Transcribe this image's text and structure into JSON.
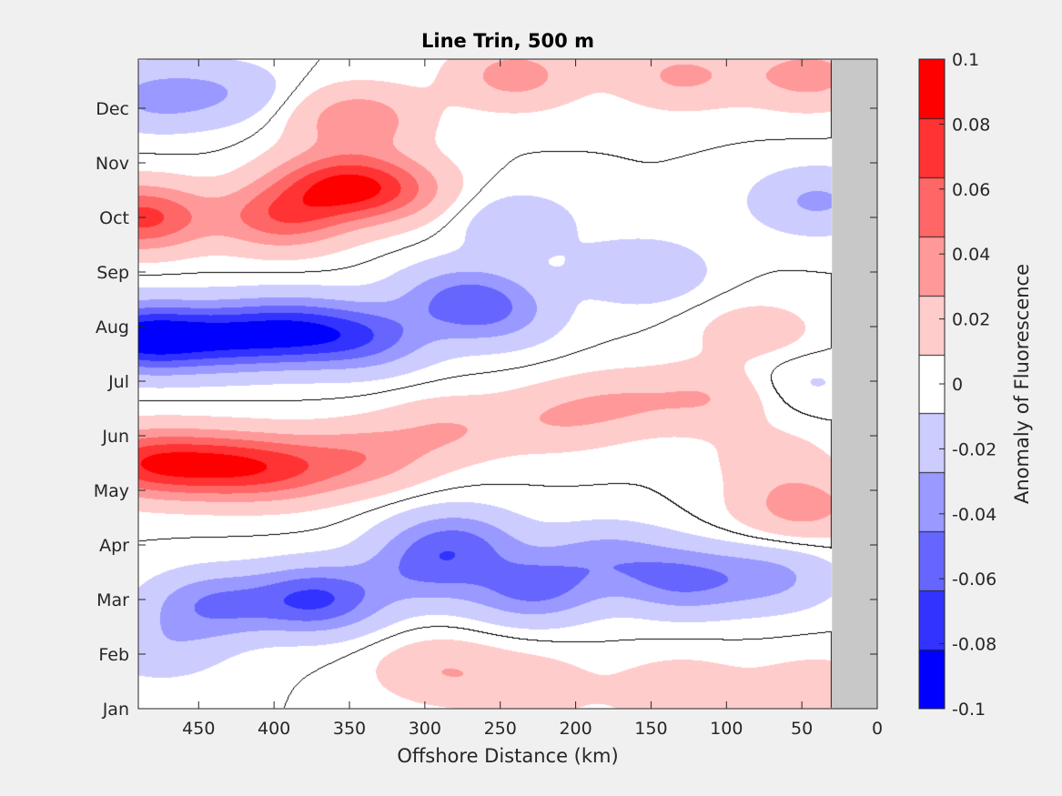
{
  "chart_data": {
    "type": "heatmap",
    "title": "Line Trin, 500 m",
    "xlabel": "Offshore Distance (km)",
    "ylabel": "",
    "colorbar_label": "Anomaly of Fluorescence",
    "x_direction": "reversed",
    "xlim": [
      490,
      0
    ],
    "ylim": [
      0,
      11.9
    ],
    "x_ticks": [
      450,
      400,
      350,
      300,
      250,
      200,
      150,
      100,
      50,
      0
    ],
    "x_tick_labels": [
      "450",
      "400",
      "350",
      "300",
      "250",
      "200",
      "150",
      "100",
      "50",
      "0"
    ],
    "y_ticks": [
      0,
      1,
      2,
      3,
      4,
      5,
      6,
      7,
      8,
      9,
      10,
      11
    ],
    "y_tick_labels": [
      "Jan",
      "Feb",
      "Mar",
      "Apr",
      "May",
      "Jun",
      "Jul",
      "Aug",
      "Sep",
      "Oct",
      "Nov",
      "Dec"
    ],
    "color_limits": [
      -0.1,
      0.1
    ],
    "colorbar_ticks": [
      0.1,
      0.08,
      0.06,
      0.04,
      0.02,
      0,
      -0.02,
      -0.04,
      -0.06,
      -0.08,
      -0.1
    ],
    "colorbar_tick_labels": [
      "0.1",
      "0.08",
      "0.06",
      "0.04",
      "0.02",
      "0",
      "-0.02",
      "-0.04",
      "-0.06",
      "-0.08",
      "-0.1"
    ],
    "contour_levels": 11,
    "zero_contour": true,
    "no_data_region_x": [
      30,
      0
    ],
    "no_data_color": "#c8c8c8",
    "colormap": "blue-white-red",
    "grid": false,
    "anomaly_features": [
      {
        "sign": "positive",
        "center": [
          488,
          9.0
        ],
        "peak": 0.07
      },
      {
        "sign": "positive",
        "center": [
          395,
          9.0
        ],
        "peak": 0.055
      },
      {
        "sign": "positive",
        "center": [
          360,
          9.6
        ],
        "peak": 0.06
      },
      {
        "sign": "positive",
        "center": [
          325,
          9.5
        ],
        "peak": 0.045
      },
      {
        "sign": "positive",
        "center": [
          345,
          10.8
        ],
        "peak": 0.04
      },
      {
        "sign": "positive",
        "center": [
          240,
          11.6
        ],
        "peak": 0.035
      },
      {
        "sign": "positive",
        "center": [
          130,
          11.6
        ],
        "peak": 0.03
      },
      {
        "sign": "positive",
        "center": [
          45,
          11.6
        ],
        "peak": 0.035
      },
      {
        "sign": "positive",
        "center": [
          488,
          4.5
        ],
        "peak": 0.065
      },
      {
        "sign": "positive",
        "center": [
          440,
          4.45
        ],
        "peak": 0.06
      },
      {
        "sign": "positive",
        "center": [
          395,
          4.4
        ],
        "peak": 0.05
      },
      {
        "sign": "positive",
        "center": [
          340,
          4.6
        ],
        "peak": 0.035
      },
      {
        "sign": "positive",
        "center": [
          285,
          5.1
        ],
        "peak": 0.025
      },
      {
        "sign": "positive",
        "center": [
          215,
          5.3
        ],
        "peak": 0.022
      },
      {
        "sign": "positive",
        "center": [
          170,
          5.6
        ],
        "peak": 0.022
      },
      {
        "sign": "positive",
        "center": [
          110,
          5.7
        ],
        "peak": 0.025
      },
      {
        "sign": "positive",
        "center": [
          50,
          3.7
        ],
        "peak": 0.035
      },
      {
        "sign": "positive",
        "center": [
          70,
          4.6
        ],
        "peak": 0.015
      },
      {
        "sign": "positive",
        "center": [
          290,
          0.7
        ],
        "peak": 0.025
      },
      {
        "sign": "positive",
        "center": [
          230,
          0.4
        ],
        "peak": 0.02
      },
      {
        "sign": "positive",
        "center": [
          130,
          0.3
        ],
        "peak": 0.025
      },
      {
        "sign": "positive",
        "center": [
          40,
          0.3
        ],
        "peak": 0.025
      },
      {
        "sign": "positive",
        "center": [
          80,
          6.9
        ],
        "peak": 0.018
      },
      {
        "sign": "negative",
        "center": [
          488,
          6.8
        ],
        "peak": -0.09
      },
      {
        "sign": "negative",
        "center": [
          435,
          6.8
        ],
        "peak": -0.06
      },
      {
        "sign": "negative",
        "center": [
          388,
          6.9
        ],
        "peak": -0.065
      },
      {
        "sign": "negative",
        "center": [
          340,
          6.8
        ],
        "peak": -0.05
      },
      {
        "sign": "negative",
        "center": [
          275,
          7.55
        ],
        "peak": -0.04
      },
      {
        "sign": "negative",
        "center": [
          255,
          7.2
        ],
        "peak": -0.03
      },
      {
        "sign": "negative",
        "center": [
          480,
          11.2
        ],
        "peak": -0.03
      },
      {
        "sign": "negative",
        "center": [
          430,
          11.3
        ],
        "peak": -0.02
      },
      {
        "sign": "negative",
        "center": [
          240,
          8.9
        ],
        "peak": -0.02
      },
      {
        "sign": "negative",
        "center": [
          155,
          8.0
        ],
        "peak": -0.025
      },
      {
        "sign": "negative",
        "center": [
          40,
          9.3
        ],
        "peak": -0.03
      },
      {
        "sign": "negative",
        "center": [
          50,
          6.0
        ],
        "peak": -0.012
      },
      {
        "sign": "negative",
        "center": [
          372,
          2.0
        ],
        "peak": -0.065
      },
      {
        "sign": "negative",
        "center": [
          440,
          1.9
        ],
        "peak": -0.045
      },
      {
        "sign": "negative",
        "center": [
          280,
          3.05
        ],
        "peak": -0.045
      },
      {
        "sign": "negative",
        "center": [
          300,
          2.5
        ],
        "peak": -0.035
      },
      {
        "sign": "negative",
        "center": [
          228,
          2.2
        ],
        "peak": -0.05
      },
      {
        "sign": "negative",
        "center": [
          130,
          2.35
        ],
        "peak": -0.045
      },
      {
        "sign": "negative",
        "center": [
          180,
          2.8
        ],
        "peak": -0.03
      },
      {
        "sign": "negative",
        "center": [
          70,
          2.4
        ],
        "peak": -0.03
      },
      {
        "sign": "negative",
        "center": [
          475,
          1.1
        ],
        "peak": -0.02
      }
    ]
  }
}
